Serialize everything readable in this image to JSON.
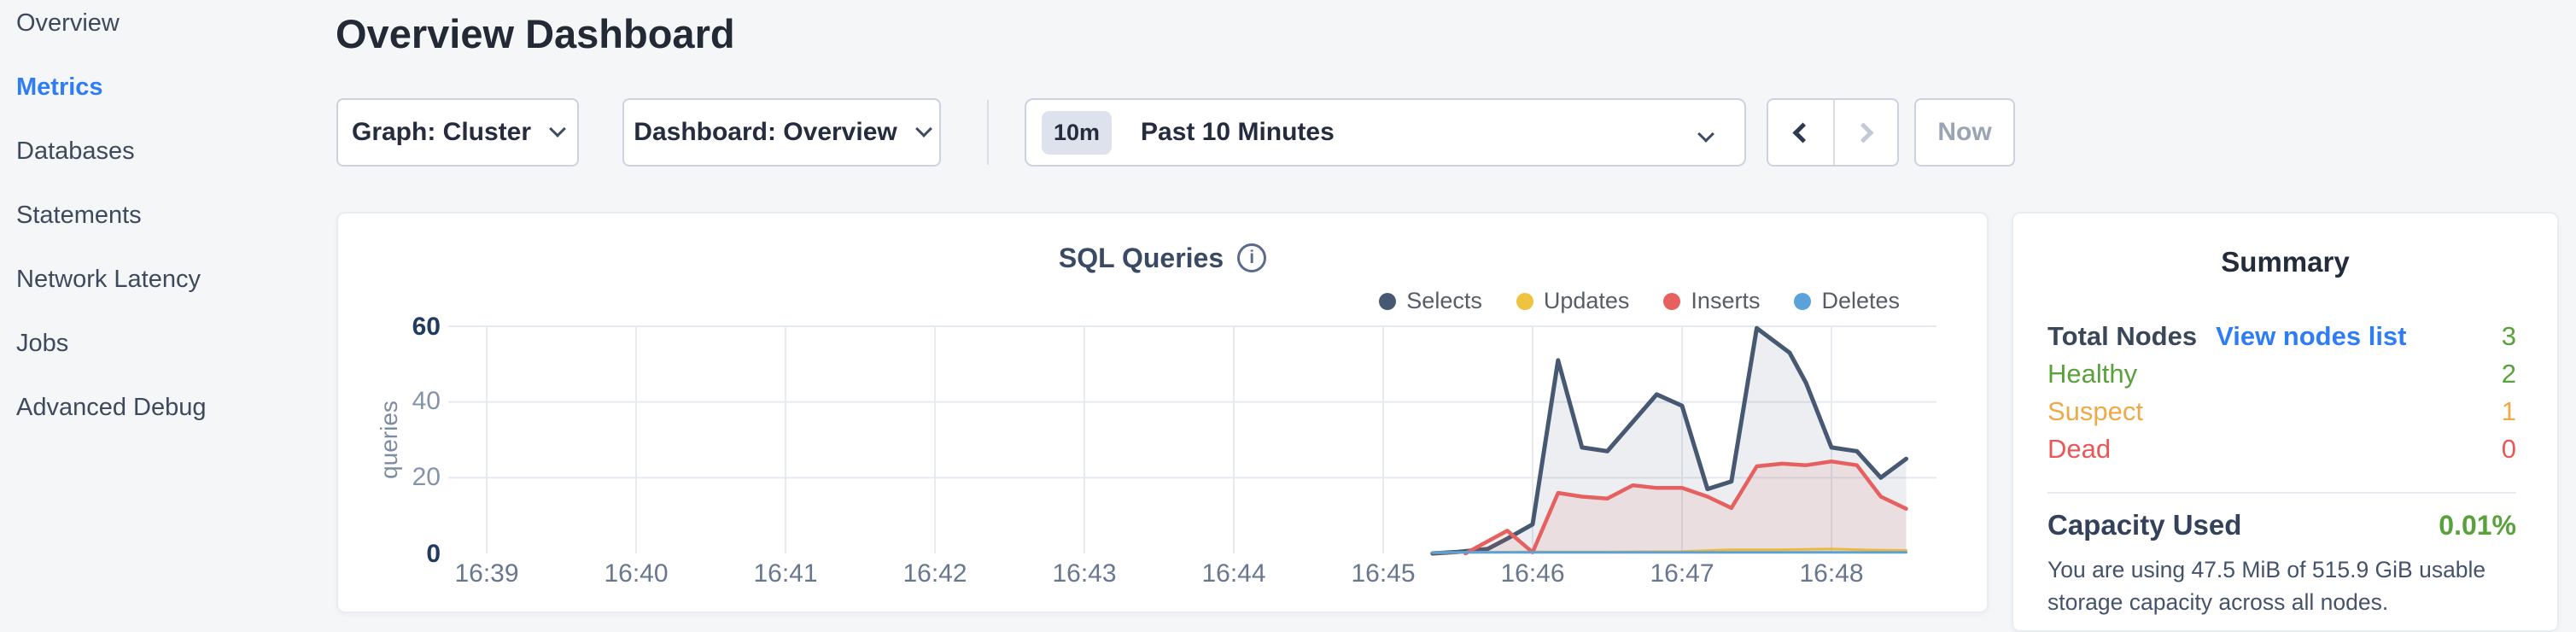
{
  "page": {
    "title": "Overview Dashboard"
  },
  "sidebar": {
    "items": [
      {
        "label": "Overview",
        "active": false
      },
      {
        "label": "Metrics",
        "active": true
      },
      {
        "label": "Databases",
        "active": false
      },
      {
        "label": "Statements",
        "active": false
      },
      {
        "label": "Network Latency",
        "active": false
      },
      {
        "label": "Jobs",
        "active": false
      },
      {
        "label": "Advanced Debug",
        "active": false
      }
    ]
  },
  "controls": {
    "graph_dropdown": "Graph: Cluster",
    "dashboard_dropdown": "Dashboard: Overview",
    "time_badge": "10m",
    "time_range": "Past 10 Minutes",
    "now_button": "Now"
  },
  "chart": {
    "title": "SQL Queries",
    "info_glyph": "i"
  },
  "chart_data": {
    "type": "area",
    "title": "SQL Queries",
    "ylabel": "queries",
    "xlabel": "",
    "ylim": [
      0,
      60
    ],
    "ytick_labels": [
      "60",
      "40",
      "20",
      "0"
    ],
    "x_ticks": [
      "16:39",
      "16:40",
      "16:41",
      "16:42",
      "16:43",
      "16:44",
      "16:45",
      "16:46",
      "16:47",
      "16:48"
    ],
    "x_unit_note": "series x values are minutes after 16:39; data begins ~16:45:20 and ends ~16:48:30",
    "grid": true,
    "legend_position": "top-right",
    "series": [
      {
        "name": "Selects",
        "color": "#475872",
        "line_width": 5,
        "fill_opacity": 0.1,
        "points": [
          [
            6.33,
            0
          ],
          [
            6.5,
            0.4
          ],
          [
            6.7,
            1.2
          ],
          [
            6.83,
            3.9
          ],
          [
            7.0,
            7.7
          ],
          [
            7.17,
            51
          ],
          [
            7.33,
            28
          ],
          [
            7.5,
            27
          ],
          [
            7.83,
            42
          ],
          [
            8.0,
            39
          ],
          [
            8.17,
            17
          ],
          [
            8.33,
            19
          ],
          [
            8.5,
            59.5
          ],
          [
            8.72,
            53
          ],
          [
            8.83,
            45
          ],
          [
            9.0,
            28
          ],
          [
            9.17,
            27
          ],
          [
            9.33,
            20
          ],
          [
            9.5,
            25
          ]
        ]
      },
      {
        "name": "Updates",
        "color": "#efc33f",
        "line_width": 3,
        "fill_opacity": 0.1,
        "points": [
          [
            6.33,
            0.2
          ],
          [
            7.0,
            0.4
          ],
          [
            7.5,
            0.4
          ],
          [
            8.0,
            0.5
          ],
          [
            8.33,
            1.0
          ],
          [
            8.67,
            1.0
          ],
          [
            9.0,
            1.2
          ],
          [
            9.25,
            0.9
          ],
          [
            9.5,
            0.8
          ]
        ]
      },
      {
        "name": "Inserts",
        "color": "#e5605e",
        "line_width": 4.5,
        "fill_opacity": 0.11,
        "points": [
          [
            6.55,
            0
          ],
          [
            6.83,
            6
          ],
          [
            7.0,
            0.3
          ],
          [
            7.17,
            16
          ],
          [
            7.33,
            15
          ],
          [
            7.5,
            14.5
          ],
          [
            7.67,
            18
          ],
          [
            7.83,
            17.3
          ],
          [
            8.0,
            17.3
          ],
          [
            8.17,
            15
          ],
          [
            8.33,
            12
          ],
          [
            8.5,
            23
          ],
          [
            8.67,
            23.7
          ],
          [
            8.83,
            23.3
          ],
          [
            9.0,
            24.3
          ],
          [
            9.17,
            23.3
          ],
          [
            9.33,
            15
          ],
          [
            9.5,
            11.8
          ]
        ]
      },
      {
        "name": "Deletes",
        "color": "#5ba2d8",
        "line_width": 3,
        "fill_opacity": 0.08,
        "points": [
          [
            6.33,
            0.3
          ],
          [
            9.5,
            0.3
          ]
        ]
      }
    ]
  },
  "summary": {
    "title": "Summary",
    "total_nodes_label": "Total Nodes",
    "view_nodes_link": "View nodes list",
    "total_nodes_value": "3",
    "rows": [
      {
        "label": "Healthy",
        "value": "2",
        "color": "#58a13b"
      },
      {
        "label": "Suspect",
        "value": "1",
        "color": "#efa947"
      },
      {
        "label": "Dead",
        "value": "0",
        "color": "#ea5757"
      }
    ],
    "capacity_label": "Capacity Used",
    "capacity_value": "0.01%",
    "capacity_description": "You are using 47.5 MiB of 515.9 GiB usable storage capacity across all nodes."
  },
  "colors": {
    "page_background": "#f4f6f8",
    "card_background": "#ffffff",
    "accent_blue": "#2f7df5",
    "healthy_green": "#58a13b",
    "suspect_orange": "#efa947",
    "dead_red": "#ea5757",
    "axis_dark_navy": "#223a5e",
    "axis_gray": "#8593a9",
    "gridline": "#e5eaf0"
  }
}
